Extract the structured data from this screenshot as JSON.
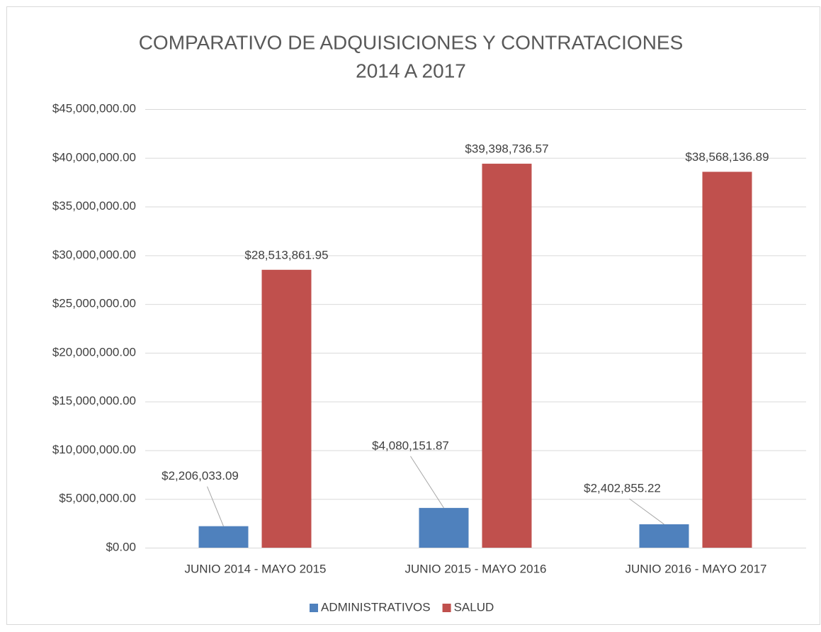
{
  "chart_data": {
    "type": "bar",
    "title": [
      "COMPARATIVO DE ADQUISICIONES Y CONTRATACIONES",
      "2014 A 2017"
    ],
    "categories": [
      "JUNIO 2014 - MAYO 2015",
      "JUNIO 2015 - MAYO 2016",
      "JUNIO 2016 - MAYO 2017"
    ],
    "series": [
      {
        "name": "ADMINISTRATIVOS",
        "color": "#4f81bd",
        "values": [
          2206033.09,
          4080151.87,
          2402855.22
        ],
        "value_labels": [
          "$2,206,033.09",
          "$4,080,151.87",
          "$2,402,855.22"
        ]
      },
      {
        "name": "SALUD",
        "color": "#c0504d",
        "values": [
          28513861.95,
          39398736.57,
          38568136.89
        ],
        "value_labels": [
          "$28,513,861.95",
          "$39,398,736.57",
          "$38,568,136.89"
        ]
      }
    ],
    "ylim": [
      0,
      45000000
    ],
    "yticks": [
      {
        "value": 0,
        "label": "$0.00"
      },
      {
        "value": 5000000,
        "label": "$5,000,000.00"
      },
      {
        "value": 10000000,
        "label": "$10,000,000.00"
      },
      {
        "value": 15000000,
        "label": "$15,000,000.00"
      },
      {
        "value": 20000000,
        "label": "$20,000,000.00"
      },
      {
        "value": 25000000,
        "label": "$25,000,000.00"
      },
      {
        "value": 30000000,
        "label": "$30,000,000.00"
      },
      {
        "value": 35000000,
        "label": "$35,000,000.00"
      },
      {
        "value": 40000000,
        "label": "$40,000,000.00"
      },
      {
        "value": 45000000,
        "label": "$45,000,000.00"
      }
    ],
    "grid": true,
    "legend": "bottom"
  }
}
